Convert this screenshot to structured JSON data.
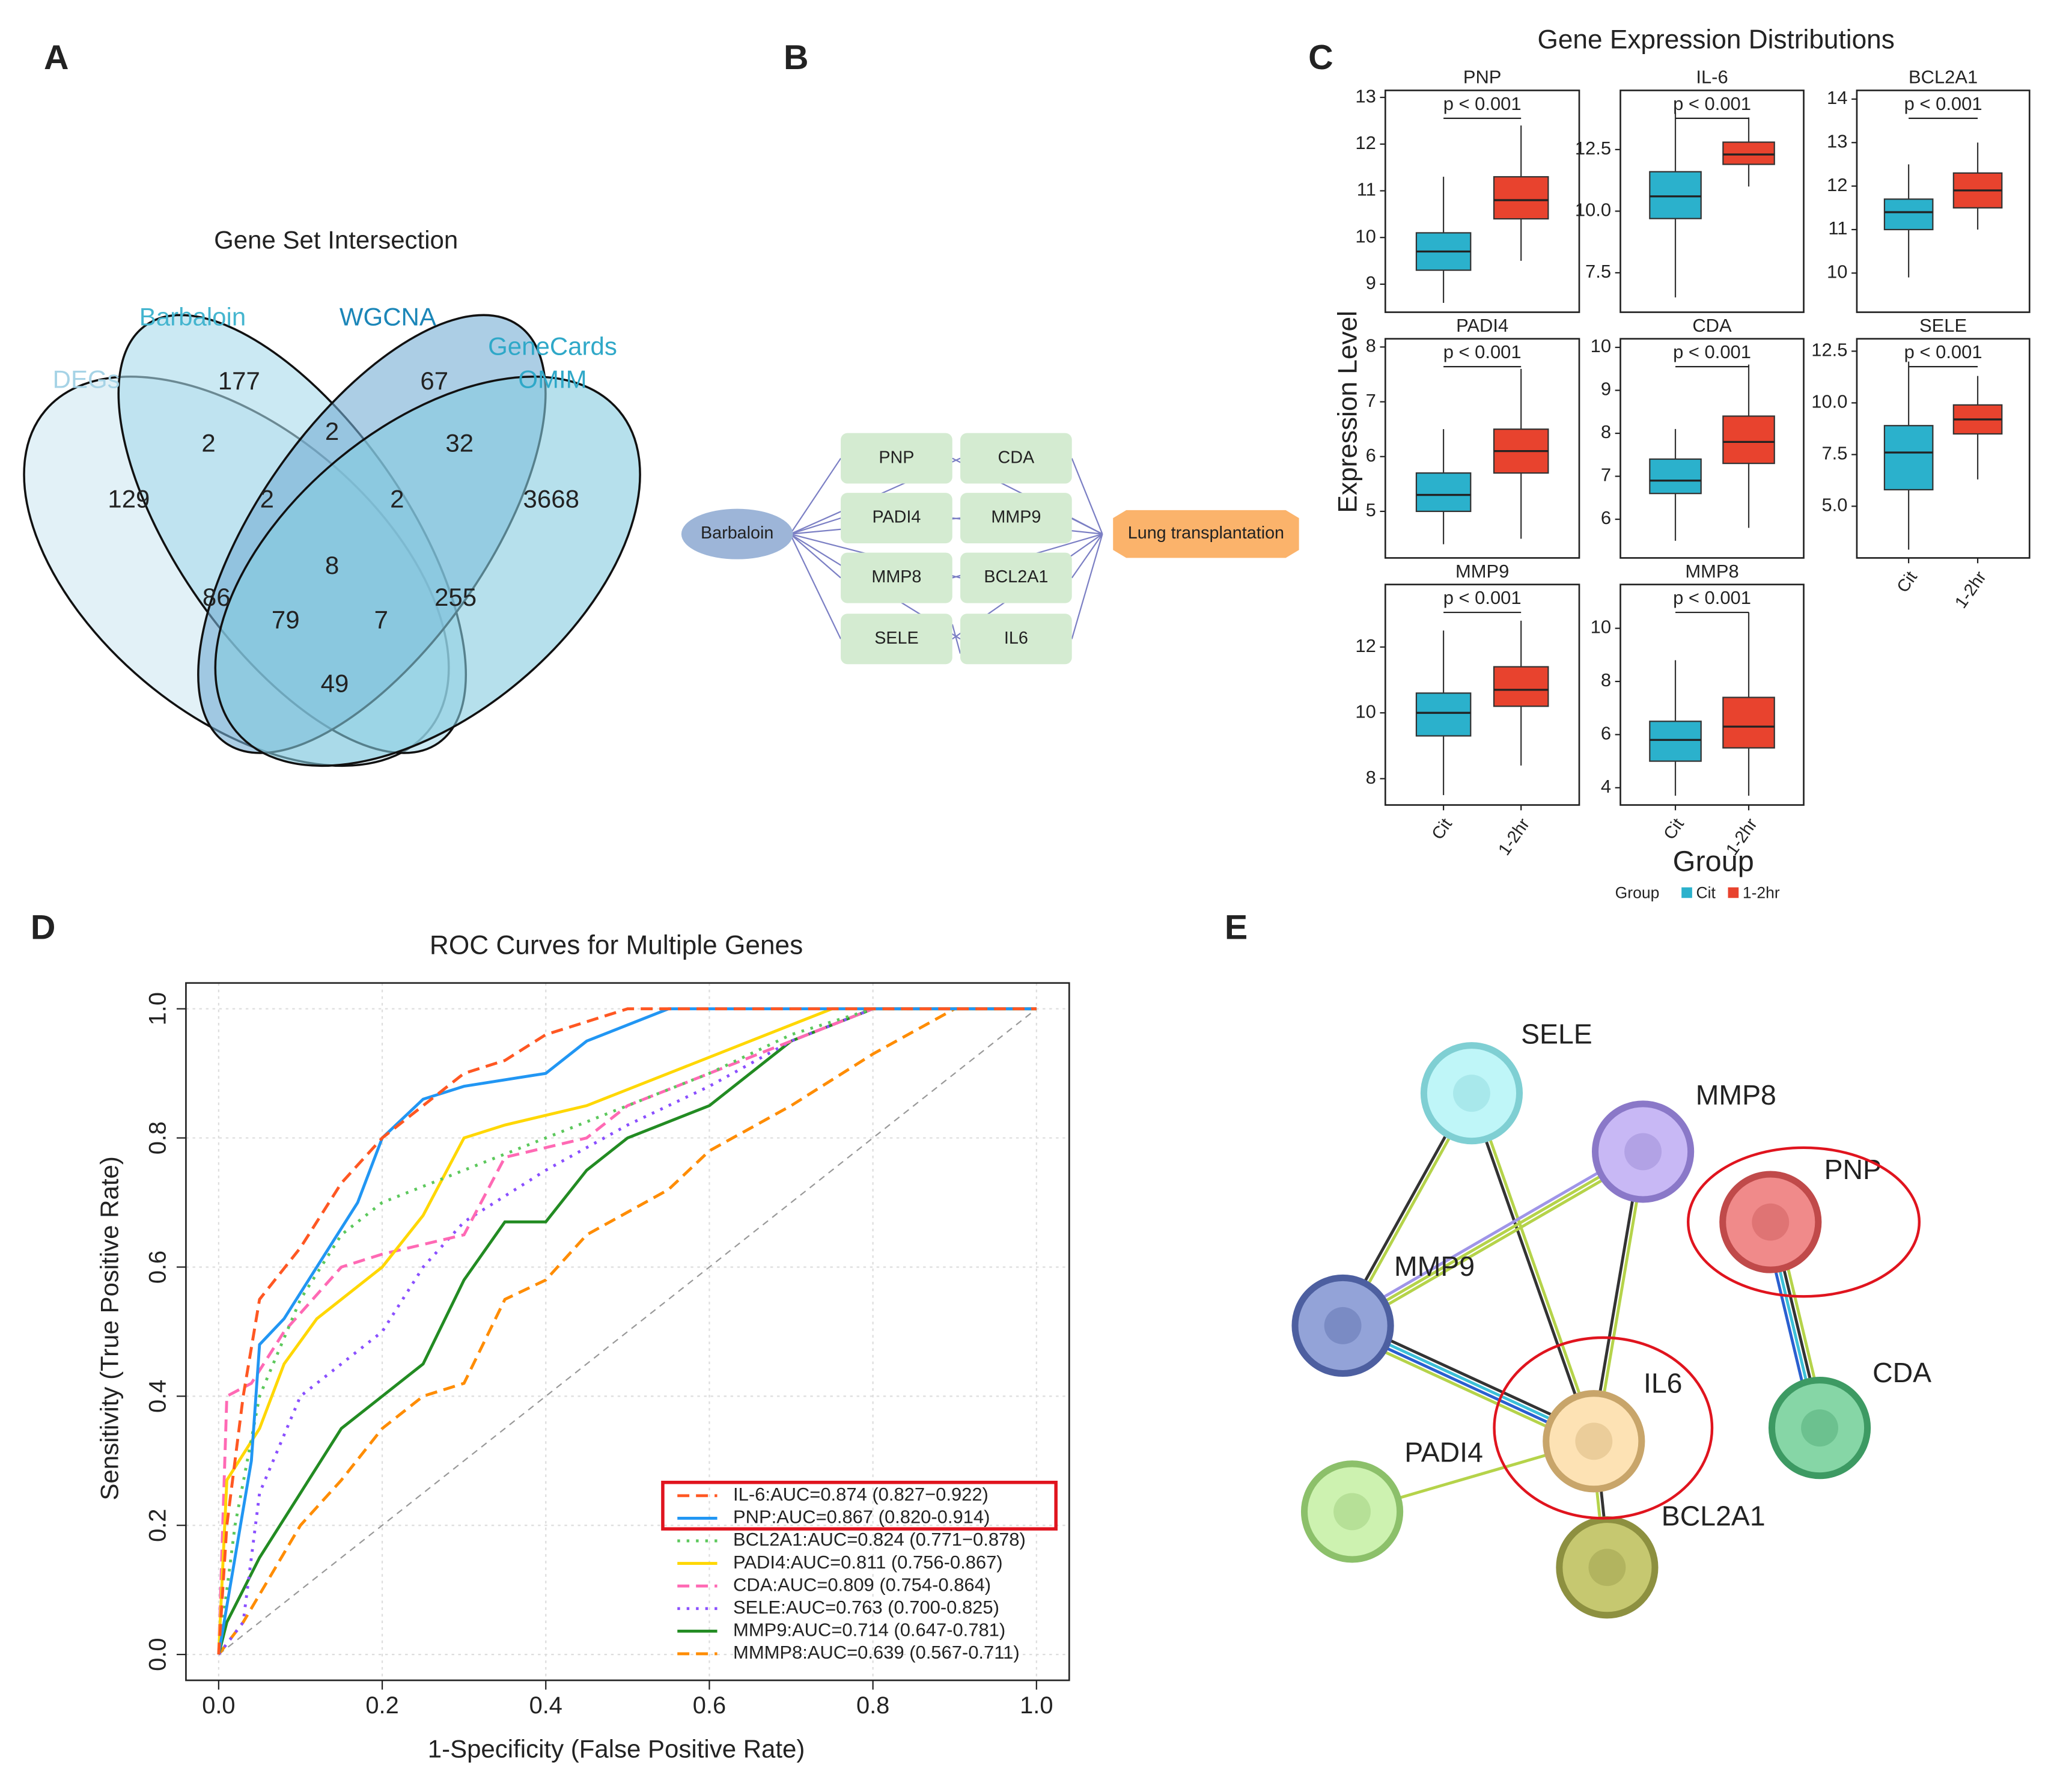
{
  "panel_labels": [
    "A",
    "B",
    "C",
    "D",
    "E"
  ],
  "venn": {
    "title": "Gene Set Intersection",
    "sets": [
      {
        "label": [
          "DEGs"
        ],
        "color": "#cfe8f1",
        "label_color": "#a6d3e6"
      },
      {
        "label": [
          "Barbaloin"
        ],
        "color": "#a9dbeb",
        "label_color": "#44b5cf"
      },
      {
        "label": [
          "WGCNA"
        ],
        "color": "#74aed3",
        "label_color": "#1b86b8"
      },
      {
        "label": [
          "GeneCards",
          "OMIM"
        ],
        "color": "#86cbdf",
        "label_color": "#2fa8c8"
      }
    ],
    "counts": [
      129,
      177,
      67,
      3668,
      2,
      2,
      32,
      2,
      8,
      2,
      86,
      255,
      79,
      7,
      49
    ]
  },
  "network_b": {
    "source": "Barbaloin",
    "target": "Lung transplantation",
    "genes": [
      "PNP",
      "CDA",
      "PADI4",
      "MMP9",
      "MMP8",
      "BCL2A1",
      "SELE",
      "IL6"
    ]
  },
  "chart_data": [
    {
      "type": "box",
      "title": "Gene Expression Distributions",
      "y_label": "Expression Level",
      "x_label": "Group",
      "legend_title": "Group",
      "categories": [
        "Cit",
        "1-2hr"
      ],
      "colors": [
        "#2bb1cc",
        "#e8432e"
      ],
      "panels": [
        {
          "name": "PNP",
          "annotation": "p < 0.001",
          "ylim": [
            8.4,
            13.15
          ],
          "yticks": [
            9,
            10,
            11,
            12,
            13
          ],
          "boxes": [
            {
              "whisker_low": 8.6,
              "q1": 9.3,
              "median": 9.7,
              "q3": 10.1,
              "whisker_high": 11.3
            },
            {
              "whisker_low": 9.5,
              "q1": 10.4,
              "median": 10.8,
              "q3": 11.3,
              "whisker_high": 12.4
            }
          ]
        },
        {
          "name": "IL-6",
          "annotation": "p < 0.001",
          "ylim": [
            5.9,
            14.9
          ],
          "yticks": [
            7.5,
            {
              "value": 10,
              "label": "10.0"
            },
            12.5
          ],
          "boxes": [
            {
              "whisker_low": 6.5,
              "q1": 9.7,
              "median": 10.6,
              "q3": 11.6,
              "whisker_high": 14.0
            },
            {
              "whisker_low": 11.0,
              "q1": 11.9,
              "median": 12.3,
              "q3": 12.8,
              "whisker_high": 13.8
            }
          ]
        },
        {
          "name": "BCL2A1",
          "annotation": "p < 0.001",
          "ylim": [
            9.1,
            14.2
          ],
          "yticks": [
            10,
            11,
            12,
            13,
            14
          ],
          "boxes": [
            {
              "whisker_low": 9.9,
              "q1": 11.0,
              "median": 11.4,
              "q3": 11.7,
              "whisker_high": 12.5
            },
            {
              "whisker_low": 11.0,
              "q1": 11.5,
              "median": 11.9,
              "q3": 12.3,
              "whisker_high": 13.0
            }
          ]
        },
        {
          "name": "PADI4",
          "annotation": "p < 0.001",
          "ylim": [
            4.15,
            8.15
          ],
          "yticks": [
            5,
            6,
            7,
            8
          ],
          "boxes": [
            {
              "whisker_low": 4.4,
              "q1": 5.0,
              "median": 5.3,
              "q3": 5.7,
              "whisker_high": 6.5
            },
            {
              "whisker_low": 4.5,
              "q1": 5.7,
              "median": 6.1,
              "q3": 6.5,
              "whisker_high": 7.6
            }
          ]
        },
        {
          "name": "CDA",
          "annotation": "p < 0.001",
          "ylim": [
            5.1,
            10.2
          ],
          "yticks": [
            6,
            7,
            8,
            9,
            10
          ],
          "boxes": [
            {
              "whisker_low": 5.5,
              "q1": 6.6,
              "median": 6.9,
              "q3": 7.4,
              "whisker_high": 8.1
            },
            {
              "whisker_low": 5.8,
              "q1": 7.3,
              "median": 7.8,
              "q3": 8.4,
              "whisker_high": 9.6
            }
          ]
        },
        {
          "name": "SELE",
          "annotation": "p < 0.001",
          "ylim": [
            2.5,
            13.1
          ],
          "yticks": [
            {
              "value": 5,
              "label": "5.0"
            },
            7.5,
            {
              "value": 10,
              "label": "10.0"
            },
            12.5
          ],
          "boxes": [
            {
              "whisker_low": 2.9,
              "q1": 5.8,
              "median": 7.6,
              "q3": 8.9,
              "whisker_high": 12.0
            },
            {
              "whisker_low": 6.3,
              "q1": 8.5,
              "median": 9.2,
              "q3": 9.9,
              "whisker_high": 11.3
            }
          ]
        },
        {
          "name": "MMP9",
          "annotation": "p < 0.001",
          "ylim": [
            7.2,
            13.9
          ],
          "yticks": [
            8,
            10,
            12
          ],
          "boxes": [
            {
              "whisker_low": 7.5,
              "q1": 9.3,
              "median": 10.0,
              "q3": 10.6,
              "whisker_high": 12.5
            },
            {
              "whisker_low": 8.4,
              "q1": 10.2,
              "median": 10.7,
              "q3": 11.4,
              "whisker_high": 12.8
            }
          ]
        },
        {
          "name": "MMP8",
          "annotation": "p < 0.001",
          "ylim": [
            3.35,
            11.65
          ],
          "yticks": [
            4,
            6,
            8,
            10
          ],
          "boxes": [
            {
              "whisker_low": 3.7,
              "q1": 5.0,
              "median": 5.8,
              "q3": 6.5,
              "whisker_high": 8.8
            },
            {
              "whisker_low": 3.7,
              "q1": 5.5,
              "median": 6.3,
              "q3": 7.4,
              "whisker_high": 10.6
            }
          ]
        }
      ]
    },
    {
      "type": "line",
      "title": "ROC Curves for Multiple Genes",
      "x_label": "1-Specificity (False Positive Rate)",
      "y_label": "Sensitivity (True Positive Rate)",
      "xlim": [
        -0.04,
        1.04
      ],
      "ylim": [
        -0.04,
        1.04
      ],
      "xticks": [
        {
          "value": 0,
          "label": "0.0"
        },
        0.2,
        0.4,
        0.6,
        0.8,
        {
          "value": 1,
          "label": "1.0"
        }
      ],
      "yticks": [
        {
          "value": 0,
          "label": "0.0"
        },
        0.2,
        0.4,
        0.6,
        0.8,
        {
          "value": 1,
          "label": "1.0"
        }
      ],
      "grid": true,
      "series": [
        {
          "name": "IL-6:AUC=0.874 (0.827−0.922)",
          "color": "#ff5722",
          "dash": "dashed",
          "x": [
            0,
            0.01,
            0.03,
            0.05,
            0.1,
            0.15,
            0.2,
            0.25,
            0.3,
            0.35,
            0.4,
            0.5,
            1
          ],
          "values": [
            0,
            0.2,
            0.4,
            0.55,
            0.63,
            0.73,
            0.8,
            0.85,
            0.9,
            0.92,
            0.96,
            1,
            1
          ]
        },
        {
          "name": "PNP:AUC=0.867 (0.820-0.914)",
          "color": "#2196f3",
          "dash": "solid",
          "x": [
            0,
            0.02,
            0.04,
            0.05,
            0.08,
            0.12,
            0.17,
            0.2,
            0.25,
            0.3,
            0.4,
            0.45,
            0.55,
            1
          ],
          "values": [
            0,
            0.15,
            0.3,
            0.48,
            0.52,
            0.6,
            0.7,
            0.8,
            0.86,
            0.88,
            0.9,
            0.95,
            1,
            1
          ]
        },
        {
          "name": "BCL2A1:AUC=0.824 (0.771−0.878)",
          "color": "#5cc85c",
          "dash": "dotted",
          "x": [
            0,
            0.02,
            0.05,
            0.1,
            0.15,
            0.2,
            0.3,
            0.4,
            0.5,
            0.6,
            0.7,
            0.8,
            1
          ],
          "values": [
            0,
            0.2,
            0.4,
            0.55,
            0.65,
            0.7,
            0.75,
            0.8,
            0.85,
            0.9,
            0.96,
            1,
            1
          ]
        },
        {
          "name": "PADI4:AUC=0.811 (0.756-0.867)",
          "color": "#ffd700",
          "dash": "solid",
          "x": [
            0,
            0.01,
            0.05,
            0.08,
            0.12,
            0.2,
            0.25,
            0.3,
            0.35,
            0.45,
            0.55,
            0.65,
            0.75,
            1
          ],
          "values": [
            0,
            0.27,
            0.35,
            0.45,
            0.52,
            0.6,
            0.68,
            0.8,
            0.82,
            0.85,
            0.9,
            0.95,
            1,
            1
          ]
        },
        {
          "name": "CDA:AUC=0.809 (0.754-0.864)",
          "color": "#ff69b4",
          "dash": "dashed",
          "x": [
            0,
            0.01,
            0.04,
            0.08,
            0.15,
            0.2,
            0.3,
            0.35,
            0.45,
            0.5,
            0.6,
            0.7,
            0.8,
            1
          ],
          "values": [
            0,
            0.4,
            0.42,
            0.5,
            0.6,
            0.62,
            0.65,
            0.77,
            0.8,
            0.85,
            0.9,
            0.95,
            1,
            1
          ]
        },
        {
          "name": "SELE:AUC=0.763 (0.700-0.825)",
          "color": "#8a4fff",
          "dash": "dotted",
          "x": [
            0,
            0.03,
            0.05,
            0.1,
            0.15,
            0.2,
            0.25,
            0.3,
            0.4,
            0.5,
            0.6,
            0.7,
            0.8,
            1
          ],
          "values": [
            0,
            0.05,
            0.25,
            0.4,
            0.45,
            0.5,
            0.6,
            0.67,
            0.75,
            0.82,
            0.88,
            0.95,
            1,
            1
          ]
        },
        {
          "name": "MMP9:AUC=0.714 (0.647-0.781)",
          "color": "#228b22",
          "dash": "solid",
          "x": [
            0,
            0.01,
            0.05,
            0.1,
            0.15,
            0.2,
            0.25,
            0.3,
            0.35,
            0.4,
            0.45,
            0.5,
            0.6,
            0.7,
            0.8,
            1
          ],
          "values": [
            0,
            0.05,
            0.15,
            0.25,
            0.35,
            0.4,
            0.45,
            0.58,
            0.67,
            0.67,
            0.75,
            0.8,
            0.85,
            0.95,
            1,
            1
          ]
        },
        {
          "name": "MMMP8:AUC=0.639 (0.567-0.711)",
          "color": "#ff8c00",
          "dash": "dashed",
          "x": [
            0,
            0.03,
            0.1,
            0.15,
            0.2,
            0.25,
            0.3,
            0.35,
            0.4,
            0.45,
            0.55,
            0.6,
            0.7,
            0.8,
            0.9,
            1
          ],
          "values": [
            0,
            0.05,
            0.2,
            0.27,
            0.35,
            0.4,
            0.42,
            0.55,
            0.58,
            0.65,
            0.72,
            0.78,
            0.85,
            0.93,
            1,
            1
          ]
        }
      ]
    }
  ],
  "string_network": {
    "nodes": [
      "SELE",
      "MMP8",
      "PNP",
      "MMP9",
      "CDA",
      "IL6",
      "PADI4",
      "BCL2A1"
    ]
  }
}
